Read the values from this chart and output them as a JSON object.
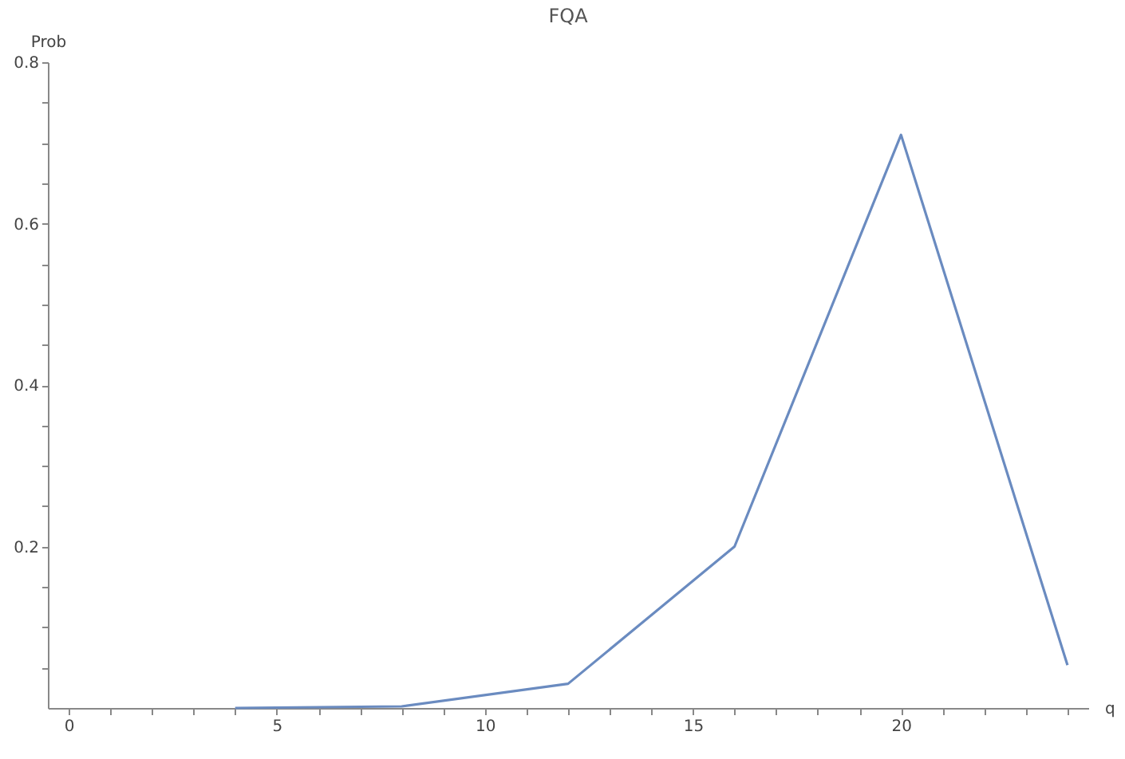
{
  "chart_data": {
    "type": "line",
    "title": "FQA",
    "xlabel": "q",
    "ylabel": "Prob",
    "x": [
      4,
      8,
      12,
      16,
      20,
      24
    ],
    "series": [
      {
        "color": "#6a8bc0",
        "values": [
          0,
          0.002,
          0.03,
          0.2,
          0.71,
          0.053
        ]
      }
    ],
    "xlim": [
      -0.5,
      24.5
    ],
    "ylim": [
      0,
      0.8
    ],
    "xticks": [
      0,
      {
        "value": 1,
        "label": null
      },
      {
        "value": 2,
        "label": null
      },
      {
        "value": 3,
        "label": null
      },
      {
        "value": 4,
        "label": null
      },
      5,
      {
        "value": 6,
        "label": null
      },
      {
        "value": 7,
        "label": null
      },
      {
        "value": 8,
        "label": null
      },
      {
        "value": 9,
        "label": null
      },
      10,
      {
        "value": 11,
        "label": null
      },
      {
        "value": 12,
        "label": null
      },
      {
        "value": 13,
        "label": null
      },
      {
        "value": 14,
        "label": null
      },
      15,
      {
        "value": 16,
        "label": null
      },
      {
        "value": 17,
        "label": null
      },
      {
        "value": 18,
        "label": null
      },
      {
        "value": 19,
        "label": null
      },
      20,
      {
        "value": 21,
        "label": null
      },
      {
        "value": 22,
        "label": null
      },
      {
        "value": 23,
        "label": null
      },
      {
        "value": 24,
        "label": null
      }
    ],
    "yticks": [
      {
        "value": 0.05,
        "label": null
      },
      {
        "value": 0.1,
        "label": null
      },
      {
        "value": 0.15,
        "label": null
      },
      0.2,
      {
        "value": 0.25,
        "label": null
      },
      {
        "value": 0.3,
        "label": null
      },
      {
        "value": 0.35,
        "label": null
      },
      0.4,
      {
        "value": 0.45,
        "label": null
      },
      {
        "value": 0.5,
        "label": null
      },
      {
        "value": 0.55,
        "label": null
      },
      0.6,
      {
        "value": 0.65,
        "label": null
      },
      {
        "value": 0.7,
        "label": null
      },
      {
        "value": 0.75,
        "label": null
      },
      0.8
    ],
    "grid": false,
    "marker": "none",
    "line_style": "solid"
  }
}
